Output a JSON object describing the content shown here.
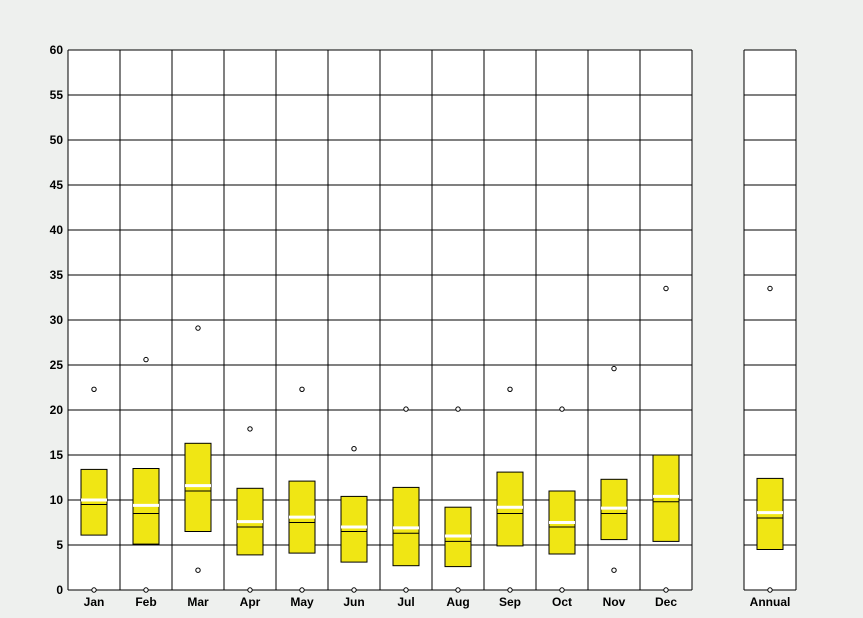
{
  "colors": {
    "background": "#eef0ee",
    "plot_background": "#ffffff",
    "box_fill": "#f0e614",
    "box_stroke": "#000000",
    "grid": "#000000",
    "median_line": "#ffffff"
  },
  "chart_data": {
    "type": "box",
    "title": "",
    "xlabel": "",
    "ylabel": "",
    "ylim": [
      0,
      60
    ],
    "y_ticks": [
      0,
      5,
      10,
      15,
      20,
      25,
      30,
      35,
      40,
      45,
      50,
      55,
      60
    ],
    "grid": true,
    "categories": [
      "Jan",
      "Feb",
      "Mar",
      "Apr",
      "May",
      "Jun",
      "Jul",
      "Aug",
      "Sep",
      "Oct",
      "Nov",
      "Dec"
    ],
    "boxes": [
      {
        "label": "Jan",
        "min": 0,
        "q1": 6.1,
        "median": 9.5,
        "mean": 10.0,
        "q3": 13.4,
        "max": 22.3
      },
      {
        "label": "Feb",
        "min": 0,
        "q1": 5.1,
        "median": 8.5,
        "mean": 9.4,
        "q3": 13.5,
        "max": 25.6
      },
      {
        "label": "Mar",
        "min": 2.2,
        "q1": 6.5,
        "median": 11.0,
        "mean": 11.6,
        "q3": 16.3,
        "max": 29.1
      },
      {
        "label": "Apr",
        "min": 0,
        "q1": 3.9,
        "median": 7.0,
        "mean": 7.6,
        "q3": 11.3,
        "max": 17.9
      },
      {
        "label": "May",
        "min": 0,
        "q1": 4.1,
        "median": 7.5,
        "mean": 8.1,
        "q3": 12.1,
        "max": 22.3
      },
      {
        "label": "Jun",
        "min": 0,
        "q1": 3.1,
        "median": 6.5,
        "mean": 7.0,
        "q3": 10.4,
        "max": 15.7
      },
      {
        "label": "Jul",
        "min": 0,
        "q1": 2.7,
        "median": 6.3,
        "mean": 6.9,
        "q3": 11.4,
        "max": 20.1
      },
      {
        "label": "Aug",
        "min": 0,
        "q1": 2.6,
        "median": 5.4,
        "mean": 6.0,
        "q3": 9.2,
        "max": 20.1
      },
      {
        "label": "Sep",
        "min": 0,
        "q1": 4.9,
        "median": 8.5,
        "mean": 9.2,
        "q3": 13.1,
        "max": 22.3
      },
      {
        "label": "Oct",
        "min": 0,
        "q1": 4.0,
        "median": 7.0,
        "mean": 7.5,
        "q3": 11.0,
        "max": 20.1
      },
      {
        "label": "Nov",
        "min": 2.2,
        "q1": 5.6,
        "median": 8.5,
        "mean": 9.1,
        "q3": 12.3,
        "max": 24.6
      },
      {
        "label": "Dec",
        "min": 0,
        "q1": 5.4,
        "median": 9.8,
        "mean": 10.4,
        "q3": 15.0,
        "max": 33.5
      }
    ],
    "annual": {
      "label": "Annual",
      "min": 0,
      "q1": 4.5,
      "median": 8.0,
      "mean": 8.6,
      "q3": 12.4,
      "max": 33.5
    }
  }
}
